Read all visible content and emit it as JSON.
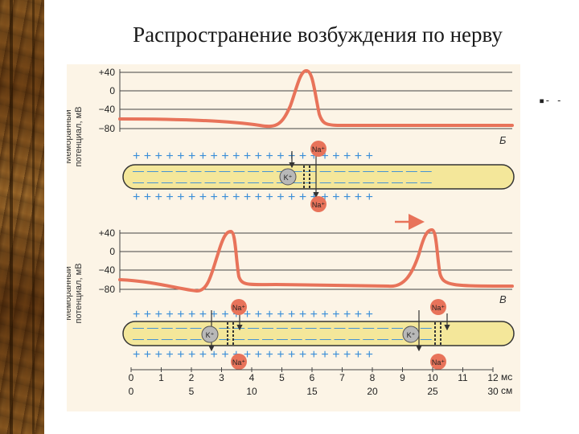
{
  "title": "Распространение возбуждения по нерву",
  "corner_mark": "▪- -",
  "y_axis_label_line1": "Мембранный",
  "y_axis_label_line2": "потенциал, мВ",
  "y_ticks": [
    "+40",
    "0",
    "−40",
    "−80"
  ],
  "panel_letters": [
    "Б",
    "В"
  ],
  "ion_labels": {
    "na": "Na⁺",
    "k": "K⁺"
  },
  "time_axis": {
    "ticks": [
      "0",
      "1",
      "2",
      "3",
      "4",
      "5",
      "6",
      "7",
      "8",
      "9",
      "10",
      "11",
      "12"
    ],
    "unit": "мс"
  },
  "distance_axis": {
    "ticks": [
      "0",
      "5",
      "10",
      "15",
      "20",
      "25",
      "30"
    ],
    "unit": "см"
  },
  "colors": {
    "trace": "#e8735a",
    "axon_fill": "#f4e79a",
    "plus": "#3a8ed8",
    "minus": "#3a8ed8",
    "na_ball": "#e8735a",
    "k_ball": "#b8b8b8",
    "background": "#fcf4e6"
  }
}
